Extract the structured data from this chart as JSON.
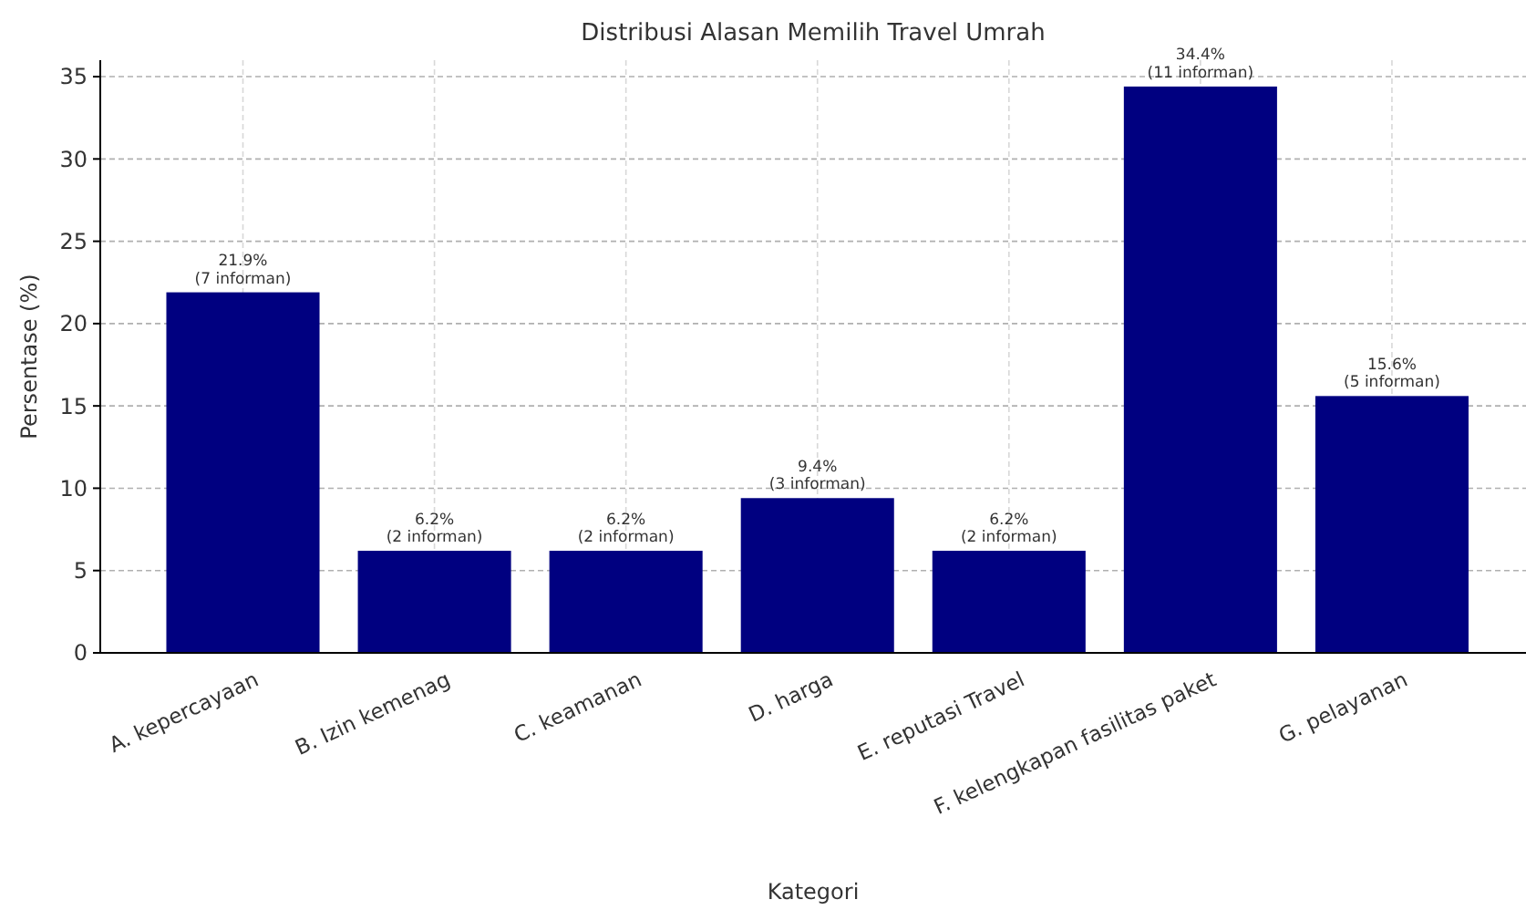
{
  "chart_data": {
    "type": "bar",
    "title": "Distribusi Alasan Memilih Travel Umrah",
    "xlabel": "Kategori",
    "ylabel": "Persentase (%)",
    "categories": [
      "A. kepercayaan",
      "B. Izin kemenag",
      "C. keamanan",
      "D. harga",
      "E. reputasi Travel",
      "F. kelengkapan fasilitas paket",
      "G. pelayanan"
    ],
    "values": [
      21.9,
      6.2,
      6.2,
      9.4,
      6.2,
      34.4,
      15.6
    ],
    "color": "#000080",
    "value_labels": [
      "21.9%\n(7 informan)",
      "6.2%\n(2 informan)",
      "6.2%\n(2 informan)",
      "9.4%\n(3 informan)",
      "6.2%\n(2 informan)",
      "34.4%\n(11 informan)",
      "15.6%\n(5 informan)"
    ],
    "ylim": [
      0,
      36
    ],
    "yticks": [
      0,
      5,
      10,
      15,
      20,
      25,
      30,
      35
    ],
    "grid": true
  }
}
